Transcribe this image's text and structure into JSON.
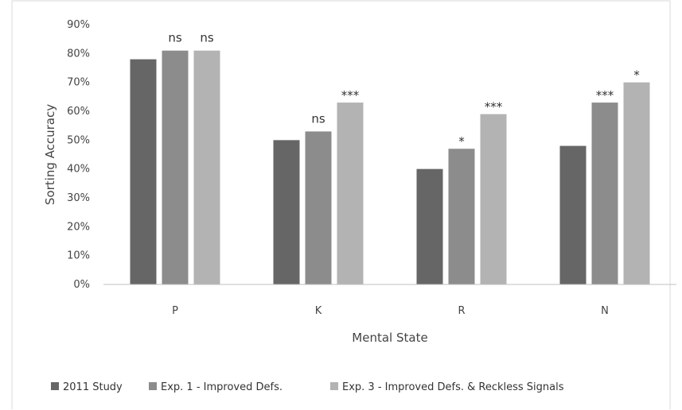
{
  "chart_data": {
    "type": "bar",
    "categories": [
      "P",
      "K",
      "R",
      "N"
    ],
    "xlabel": "Mental State",
    "ylabel": "Sorting Accuracy",
    "ylim": [
      0,
      90
    ],
    "y_ticks": [
      "0%",
      "10%",
      "20%",
      "30%",
      "40%",
      "50%",
      "60%",
      "70%",
      "80%",
      "90%"
    ],
    "y_tick_values": [
      0,
      10,
      20,
      30,
      40,
      50,
      60,
      70,
      80,
      90
    ],
    "grid": false,
    "legend_position": "bottom",
    "series": [
      {
        "name": "2011 Study",
        "color": "#666666",
        "values": [
          78,
          50,
          40,
          48
        ],
        "labels": [
          "",
          "",
          "",
          ""
        ]
      },
      {
        "name": "Exp. 1 - Improved Defs.",
        "color": "#8c8c8c",
        "values": [
          81,
          53,
          47,
          63
        ],
        "labels": [
          "ns",
          "ns",
          "*",
          "***"
        ]
      },
      {
        "name": "Exp. 3 - Improved Defs. & Reckless Signals",
        "color": "#b3b3b3",
        "values": [
          81,
          63,
          59,
          70
        ],
        "labels": [
          "ns",
          "***",
          "***",
          "*"
        ]
      }
    ]
  }
}
